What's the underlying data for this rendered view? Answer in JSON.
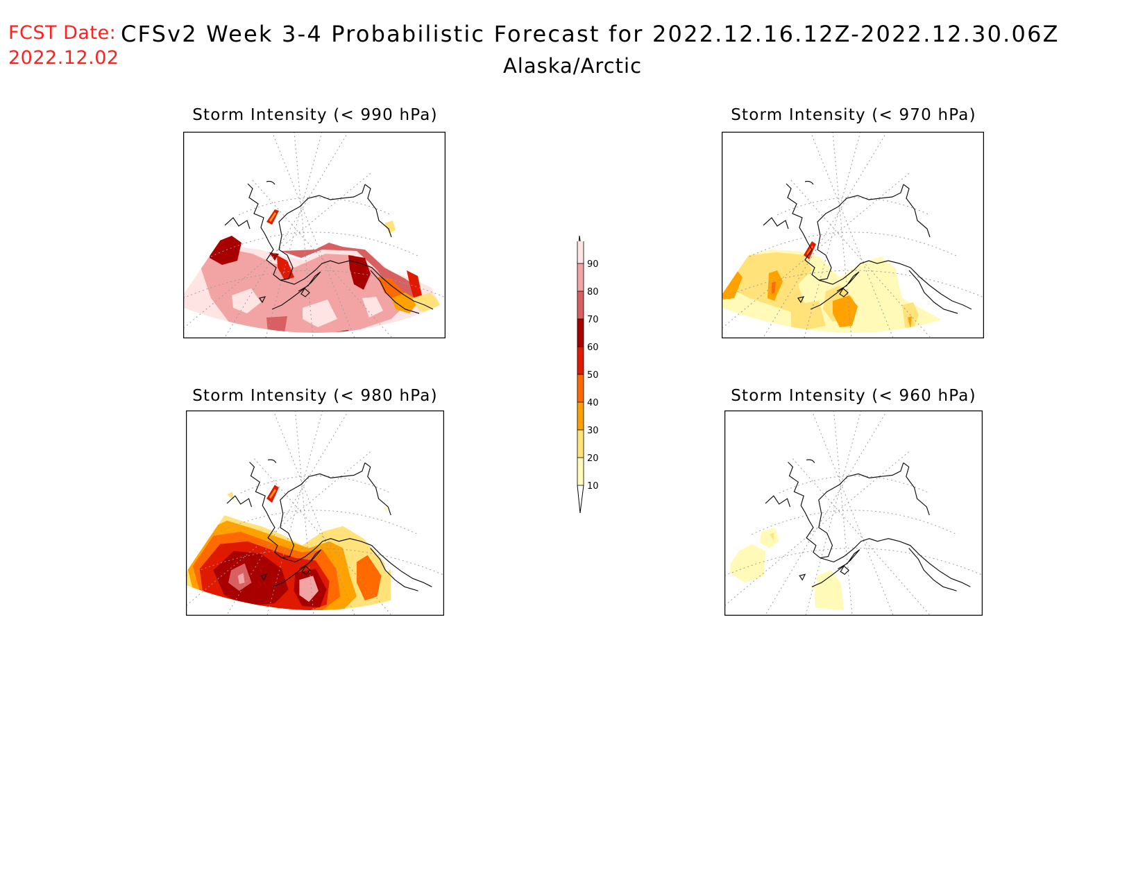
{
  "header": {
    "fcst_label": "FCST Date:",
    "fcst_date": "2022.12.02",
    "title": "CFSv2 Week 3-4 Probabilistic Forecast for 2022.12.16.12Z-2022.12.30.06Z",
    "subtitle": "Alaska/Arctic"
  },
  "panels": [
    {
      "title": "Storm Intensity (< 990 hPa)"
    },
    {
      "title": "Storm Intensity (< 970 hPa)"
    },
    {
      "title": "Storm Intensity (< 980 hPa)"
    },
    {
      "title": "Storm Intensity (< 960 hPa)"
    }
  ],
  "legend": {
    "labels": [
      "90",
      "80",
      "70",
      "60",
      "50",
      "40",
      "30",
      "20",
      "10"
    ],
    "colors": {
      "gt90": "#ffe4e4",
      "80-90": "#f2a4a4",
      "70-80": "#d86060",
      "60-70": "#a80000",
      "50-60": "#e01a00",
      "40-50": "#ff6a00",
      "30-40": "#ffa200",
      "20-30": "#ffe27a",
      "10-20": "#fffab8"
    }
  }
}
